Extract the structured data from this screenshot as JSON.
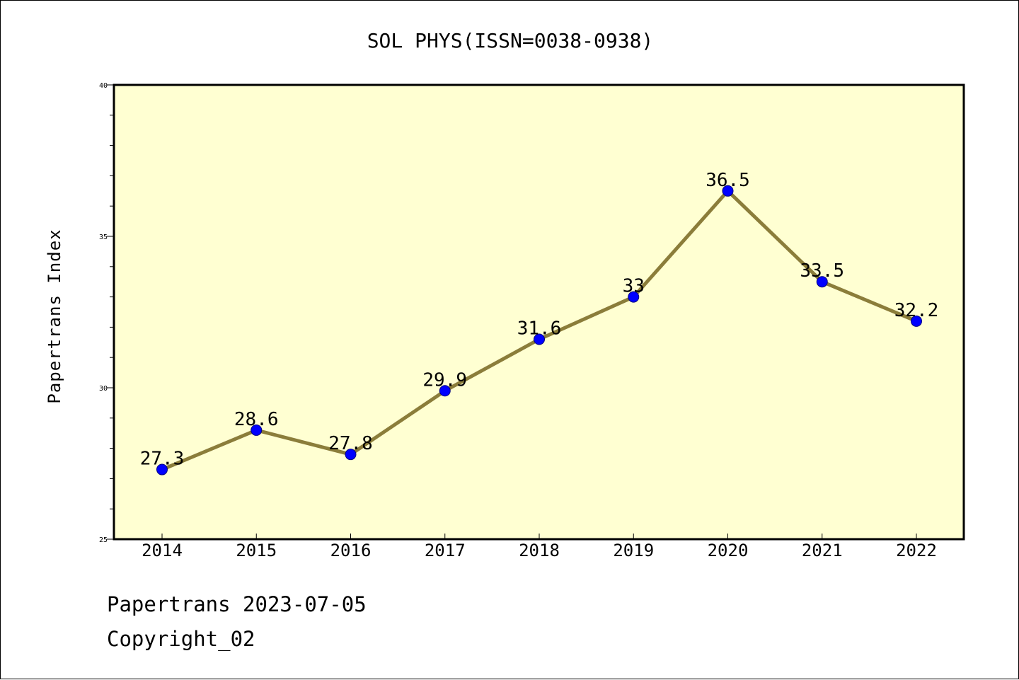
{
  "chart_data": {
    "type": "line",
    "title": "SOL PHYS(ISSN=0038-0938)",
    "ylabel": "Papertrans Index",
    "xlabel": "",
    "categories": [
      "2014",
      "2015",
      "2016",
      "2017",
      "2018",
      "2019",
      "2020",
      "2021",
      "2022"
    ],
    "values": [
      27.3,
      28.6,
      27.8,
      29.9,
      31.6,
      33,
      36.5,
      33.5,
      32.2
    ],
    "data_labels": [
      "27.3",
      "28.6",
      "27.8",
      "29.9",
      "31.6",
      "33",
      "36.5",
      "33.5",
      "32.2"
    ],
    "ylim": [
      25,
      40
    ],
    "y_ticks": [
      25,
      30,
      35,
      40
    ],
    "y_minor_step": 1,
    "grid": false,
    "legend": "none",
    "colors": {
      "plot_background": "#ffffd2",
      "line": "#8b7d3a",
      "marker": "#0000ff"
    }
  },
  "footer": {
    "date_line": "Papertrans 2023-07-05",
    "copyright": "Copyright_02"
  }
}
